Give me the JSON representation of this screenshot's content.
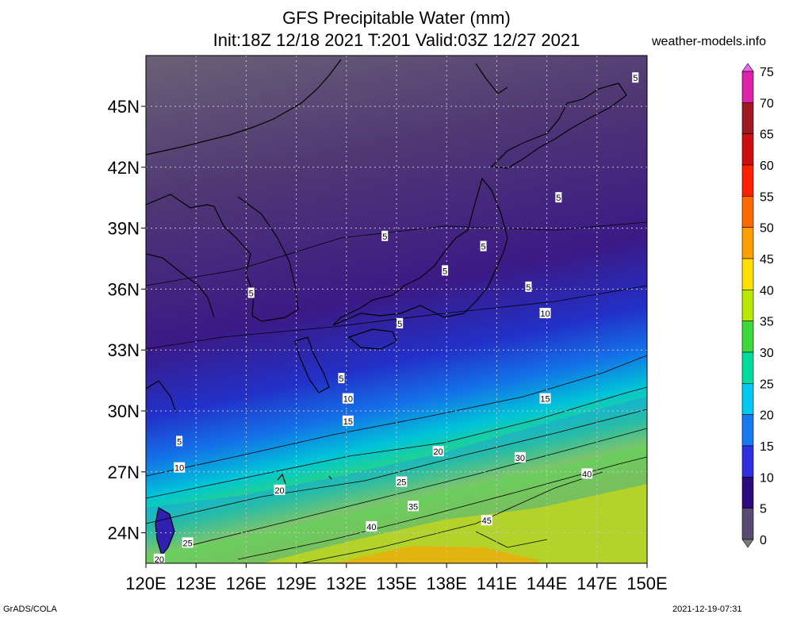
{
  "title": {
    "line1": "GFS Precipitable Water (mm)",
    "line2": "Init:18Z 12/18 2021 T:201 Valid:03Z 12/27 2021"
  },
  "site": "weather-models.info",
  "footer": {
    "left": "GrADS/COLA",
    "right": "2021-12-19-07:31"
  },
  "axes": {
    "lat_labels": [
      "45N",
      "42N",
      "39N",
      "36N",
      "33N",
      "30N",
      "27N",
      "24N"
    ],
    "lat_values": [
      45,
      42,
      39,
      36,
      33,
      30,
      27,
      24
    ],
    "lon_labels": [
      "120E",
      "123E",
      "126E",
      "129E",
      "132E",
      "135E",
      "138E",
      "141E",
      "144E",
      "147E",
      "150E"
    ],
    "lon_values": [
      120,
      123,
      126,
      129,
      132,
      135,
      138,
      141,
      144,
      147,
      150
    ],
    "lon_range": [
      120,
      150
    ],
    "lat_range": [
      22.5,
      47.5
    ]
  },
  "colorbar": {
    "labels": [
      "75",
      "70",
      "65",
      "60",
      "55",
      "50",
      "45",
      "40",
      "35",
      "30",
      "25",
      "20",
      "15",
      "10",
      "5",
      "0"
    ],
    "colors": [
      "#ee66ee",
      "#dd22aa",
      "#a01820",
      "#cc1010",
      "#ff2000",
      "#ff6a00",
      "#ffa000",
      "#ffe000",
      "#b8e800",
      "#3ed83e",
      "#00dca0",
      "#00c8f0",
      "#1878f0",
      "#3030e0",
      "#2c0c7c",
      "#5a4a70",
      "#7a7a7a"
    ]
  },
  "contours": [
    {
      "label": "5",
      "lon": 149.3,
      "lat": 46.4
    },
    {
      "label": "5",
      "lon": 144.7,
      "lat": 40.5
    },
    {
      "label": "5",
      "lon": 134.3,
      "lat": 38.6
    },
    {
      "label": "5",
      "lon": 140.2,
      "lat": 38.1
    },
    {
      "label": "5",
      "lon": 137.9,
      "lat": 36.9
    },
    {
      "label": "5",
      "lon": 126.3,
      "lat": 35.8
    },
    {
      "label": "5",
      "lon": 142.9,
      "lat": 36.1
    },
    {
      "label": "5",
      "lon": 135.2,
      "lat": 34.3
    },
    {
      "label": "5",
      "lon": 131.7,
      "lat": 31.6
    },
    {
      "label": "5",
      "lon": 122.0,
      "lat": 28.5
    },
    {
      "label": "10",
      "lon": 143.9,
      "lat": 34.8
    },
    {
      "label": "10",
      "lon": 132.1,
      "lat": 30.6
    },
    {
      "label": "10",
      "lon": 122.0,
      "lat": 27.2
    },
    {
      "label": "15",
      "lon": 143.9,
      "lat": 30.6
    },
    {
      "label": "15",
      "lon": 132.1,
      "lat": 29.5
    },
    {
      "label": "20",
      "lon": 137.5,
      "lat": 28.0
    },
    {
      "label": "20",
      "lon": 128.0,
      "lat": 26.1
    },
    {
      "label": "25",
      "lon": 135.3,
      "lat": 26.5
    },
    {
      "label": "25",
      "lon": 122.5,
      "lat": 23.5
    },
    {
      "label": "30",
      "lon": 142.4,
      "lat": 27.7
    },
    {
      "label": "35",
      "lon": 136.0,
      "lat": 25.3
    },
    {
      "label": "40",
      "lon": 146.4,
      "lat": 26.9
    },
    {
      "label": "40",
      "lon": 133.5,
      "lat": 24.3
    },
    {
      "label": "45",
      "lon": 140.4,
      "lat": 24.6
    },
    {
      "label": "20",
      "lon": 120.8,
      "lat": 22.7
    }
  ]
}
